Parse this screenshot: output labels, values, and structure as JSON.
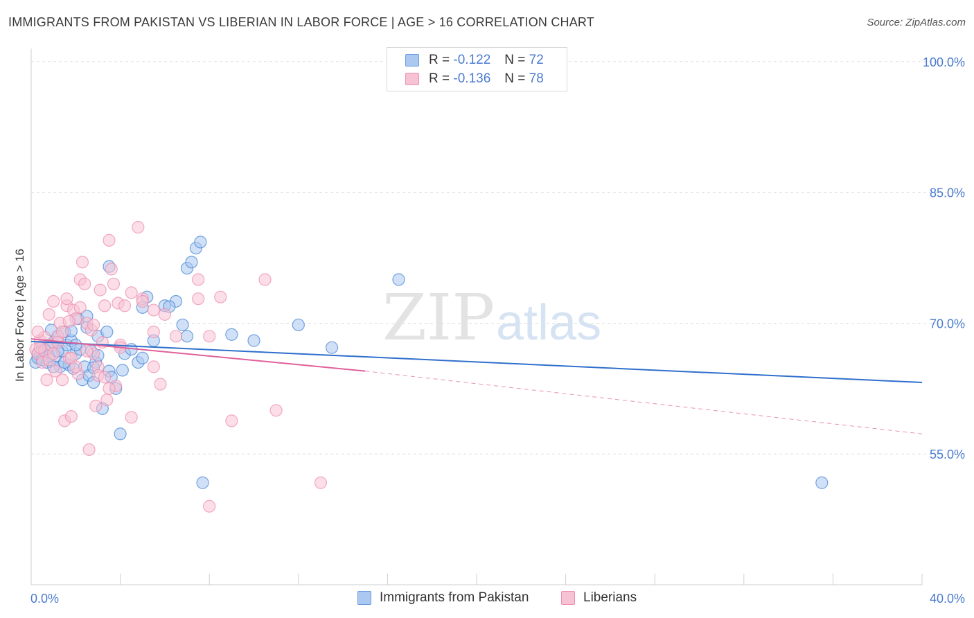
{
  "title": "IMMIGRANTS FROM PAKISTAN VS LIBERIAN IN LABOR FORCE | AGE > 16 CORRELATION CHART",
  "source": "Source: ZipAtlas.com",
  "watermark": {
    "zip": "ZIP",
    "atlas": "atlas"
  },
  "legend": {
    "r_label": "R =",
    "n_label": "N =",
    "series": [
      {
        "r": "-0.122",
        "n": "72",
        "fill": "#aac8f0",
        "stroke": "#6a9ae0"
      },
      {
        "r": "-0.136",
        "n": "78",
        "fill": "#f7c3d4",
        "stroke": "#ee8fb0"
      }
    ]
  },
  "chart_data": {
    "type": "scatter",
    "title": "IMMIGRANTS FROM PAKISTAN VS LIBERIAN IN LABOR FORCE | AGE > 16 CORRELATION CHART",
    "xlabel": "",
    "ylabel": "In Labor Force | Age > 16",
    "xlim": [
      0,
      40
    ],
    "ylim": [
      40,
      101.5
    ],
    "x_tick_labels": [
      "0.0%",
      "40.0%"
    ],
    "y_ticks": [
      55,
      70,
      85,
      100
    ],
    "y_tick_labels": [
      "55.0%",
      "70.0%",
      "85.0%",
      "100.0%"
    ],
    "grid": true,
    "series": [
      {
        "name": "Immigrants from Pakistan",
        "color": "#4a85d6",
        "fill": "#aac8f0",
        "trend": {
          "x": [
            0,
            40
          ],
          "y": [
            67.9,
            63.2
          ],
          "style": "solid",
          "color": "#2f6fcc"
        },
        "points": [
          [
            0.3,
            66.5
          ],
          [
            0.4,
            66.0
          ],
          [
            0.5,
            67.2
          ],
          [
            0.6,
            66.8
          ],
          [
            0.7,
            65.5
          ],
          [
            0.8,
            67.5
          ],
          [
            0.9,
            69.2
          ],
          [
            1.0,
            67.8
          ],
          [
            1.1,
            66.2
          ],
          [
            1.2,
            68.5
          ],
          [
            1.3,
            65.0
          ],
          [
            1.4,
            66.8
          ],
          [
            1.5,
            69.0
          ],
          [
            1.6,
            67.5
          ],
          [
            1.7,
            65.2
          ],
          [
            1.8,
            68.0
          ],
          [
            1.9,
            64.8
          ],
          [
            2.0,
            66.5
          ],
          [
            2.1,
            70.5
          ],
          [
            2.2,
            67.0
          ],
          [
            2.3,
            63.5
          ],
          [
            2.4,
            65.0
          ],
          [
            2.5,
            69.5
          ],
          [
            2.6,
            64.0
          ],
          [
            2.7,
            66.8
          ],
          [
            2.8,
            63.2
          ],
          [
            2.9,
            65.5
          ],
          [
            3.0,
            68.5
          ],
          [
            3.2,
            60.2
          ],
          [
            3.4,
            69.0
          ],
          [
            3.5,
            64.5
          ],
          [
            3.6,
            63.8
          ],
          [
            3.8,
            62.5
          ],
          [
            4.0,
            57.3
          ],
          [
            4.2,
            66.5
          ],
          [
            4.5,
            67.0
          ],
          [
            4.8,
            65.5
          ],
          [
            5.0,
            66.0
          ],
          [
            5.2,
            73.0
          ],
          [
            5.5,
            68.0
          ],
          [
            6.0,
            72.0
          ],
          [
            6.5,
            72.5
          ],
          [
            6.8,
            69.8
          ],
          [
            7.0,
            76.3
          ],
          [
            7.2,
            77.0
          ],
          [
            7.4,
            78.6
          ],
          [
            7.6,
            79.3
          ],
          [
            7.0,
            68.5
          ],
          [
            3.5,
            76.5
          ],
          [
            2.5,
            70.8
          ],
          [
            0.2,
            65.5
          ],
          [
            0.3,
            66.0
          ],
          [
            0.5,
            65.8
          ],
          [
            0.6,
            67.0
          ],
          [
            0.8,
            66.2
          ],
          [
            1.0,
            65.0
          ],
          [
            1.2,
            66.8
          ],
          [
            9.0,
            68.7
          ],
          [
            10.0,
            68.0
          ],
          [
            12.0,
            69.8
          ],
          [
            13.5,
            67.2
          ],
          [
            16.5,
            75.0
          ],
          [
            7.7,
            51.7
          ],
          [
            35.5,
            51.7
          ],
          [
            4.1,
            64.6
          ],
          [
            2.8,
            64.9
          ],
          [
            1.5,
            65.5
          ],
          [
            6.2,
            71.9
          ],
          [
            5.0,
            71.8
          ],
          [
            3.0,
            66.3
          ],
          [
            2.0,
            67.5
          ],
          [
            1.8,
            69.1
          ]
        ]
      },
      {
        "name": "Liberians",
        "color": "#ee8fb0",
        "fill": "#f7c3d4",
        "trend": {
          "x": [
            0,
            15
          ],
          "y": [
            68.2,
            64.5
          ],
          "x_dashed": [
            15,
            40
          ],
          "y_dashed": [
            64.5,
            57.3
          ],
          "style": "solid",
          "color": "#e0609a"
        },
        "points": [
          [
            0.2,
            67.0
          ],
          [
            0.3,
            66.5
          ],
          [
            0.4,
            68.0
          ],
          [
            0.5,
            65.5
          ],
          [
            0.6,
            66.8
          ],
          [
            0.7,
            63.5
          ],
          [
            0.8,
            71.0
          ],
          [
            0.9,
            67.5
          ],
          [
            1.0,
            72.5
          ],
          [
            1.1,
            64.5
          ],
          [
            1.2,
            68.5
          ],
          [
            1.3,
            70.0
          ],
          [
            1.4,
            63.5
          ],
          [
            1.5,
            58.8
          ],
          [
            1.6,
            72.0
          ],
          [
            1.7,
            66.0
          ],
          [
            1.8,
            59.3
          ],
          [
            1.9,
            71.5
          ],
          [
            2.0,
            70.5
          ],
          [
            2.1,
            64.2
          ],
          [
            2.2,
            75.0
          ],
          [
            2.3,
            77.0
          ],
          [
            2.4,
            74.5
          ],
          [
            2.5,
            70.0
          ],
          [
            2.6,
            55.5
          ],
          [
            2.7,
            69.2
          ],
          [
            2.8,
            66.5
          ],
          [
            2.9,
            60.5
          ],
          [
            3.0,
            65.0
          ],
          [
            3.1,
            73.8
          ],
          [
            3.2,
            67.8
          ],
          [
            3.3,
            72.0
          ],
          [
            3.4,
            61.2
          ],
          [
            3.5,
            79.5
          ],
          [
            3.6,
            76.2
          ],
          [
            3.7,
            74.5
          ],
          [
            3.8,
            62.8
          ],
          [
            3.9,
            72.3
          ],
          [
            4.0,
            67.5
          ],
          [
            4.2,
            72.0
          ],
          [
            4.5,
            59.2
          ],
          [
            4.8,
            81.0
          ],
          [
            5.0,
            72.8
          ],
          [
            5.5,
            71.5
          ],
          [
            5.8,
            63.0
          ],
          [
            5.5,
            65.0
          ],
          [
            7.5,
            75.0
          ],
          [
            8.0,
            68.5
          ],
          [
            9.0,
            58.8
          ],
          [
            10.5,
            75.0
          ],
          [
            11.0,
            60.0
          ],
          [
            13.0,
            51.7
          ],
          [
            8.0,
            49.0
          ],
          [
            0.4,
            67.2
          ],
          [
            0.6,
            68.4
          ],
          [
            0.8,
            65.8
          ],
          [
            1.0,
            66.5
          ],
          [
            1.2,
            67.8
          ],
          [
            1.4,
            69.0
          ],
          [
            1.6,
            72.8
          ],
          [
            1.8,
            66.0
          ],
          [
            2.0,
            65.0
          ],
          [
            2.5,
            66.8
          ],
          [
            3.0,
            64.0
          ],
          [
            3.5,
            62.5
          ],
          [
            4.0,
            67.2
          ],
          [
            4.5,
            73.5
          ],
          [
            5.0,
            72.5
          ],
          [
            5.5,
            69.0
          ],
          [
            6.0,
            71.0
          ],
          [
            6.5,
            68.5
          ],
          [
            7.5,
            72.8
          ],
          [
            8.5,
            73.0
          ],
          [
            2.2,
            71.8
          ],
          [
            1.7,
            70.2
          ],
          [
            0.3,
            69.0
          ],
          [
            2.8,
            69.8
          ],
          [
            3.3,
            63.8
          ]
        ]
      }
    ]
  }
}
